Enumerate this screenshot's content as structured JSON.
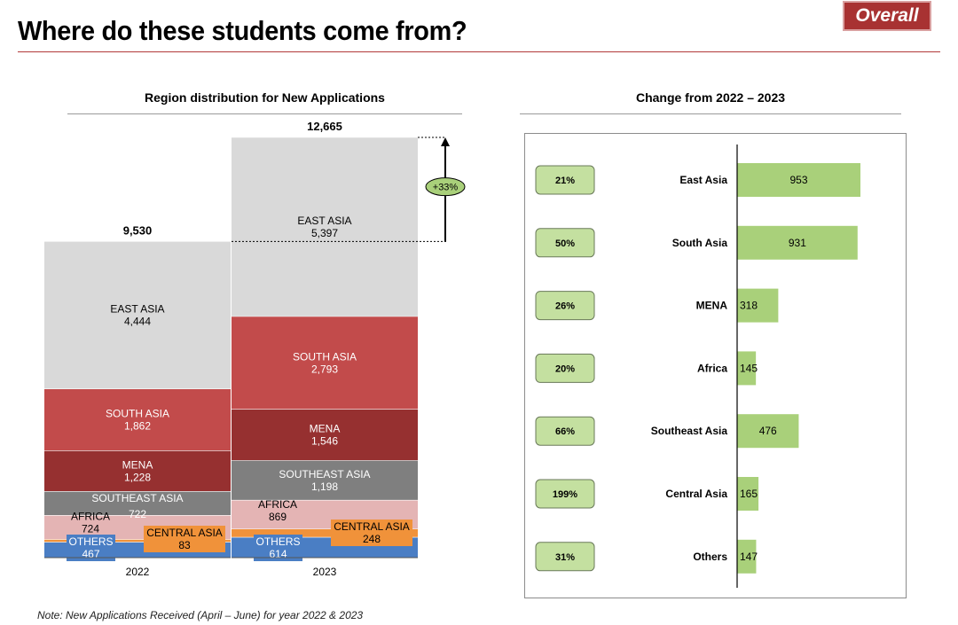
{
  "header": {
    "title": "Where do these students come from?",
    "badge": "Overall"
  },
  "note": "Note: New Applications Received (April – June) for year 2022 & 2023",
  "chart_data": [
    {
      "type": "bar",
      "stacked": true,
      "title": "Region distribution for New Applications",
      "categories": [
        "2022",
        "2023"
      ],
      "totals": [
        9530,
        12665
      ],
      "total_labels": [
        "9,530",
        "12,665"
      ],
      "growth_label": "+33%",
      "series": [
        {
          "name": "OTHERS",
          "values": [
            467,
            614
          ],
          "value_labels": [
            "467",
            "614"
          ],
          "color": "#4a7ec4"
        },
        {
          "name": "CENTRAL ASIA",
          "values": [
            83,
            248
          ],
          "value_labels": [
            "83",
            "248"
          ],
          "color": "#f0923a"
        },
        {
          "name": "AFRICA",
          "values": [
            724,
            869
          ],
          "value_labels": [
            "724",
            "869"
          ],
          "color": "#e4b4b4"
        },
        {
          "name": "SOUTHEAST ASIA",
          "values": [
            722,
            1198
          ],
          "value_labels": [
            "722",
            "1,198"
          ],
          "color": "#7f7f7f"
        },
        {
          "name": "MENA",
          "values": [
            1228,
            1546
          ],
          "value_labels": [
            "1,228",
            "1,546"
          ],
          "color": "#963030"
        },
        {
          "name": "SOUTH ASIA",
          "values": [
            1862,
            2793
          ],
          "value_labels": [
            "1,862",
            "2,793"
          ],
          "color": "#c24b4b"
        },
        {
          "name": "EAST ASIA",
          "values": [
            4444,
            5397
          ],
          "value_labels": [
            "4,444",
            "5,397"
          ],
          "color": "#d9d9d9"
        }
      ]
    },
    {
      "type": "bar",
      "orientation": "horizontal",
      "title": "Change from 2022 – 2023",
      "categories": [
        "East Asia",
        "South Asia",
        "MENA",
        "Africa",
        "Southeast Asia",
        "Central Asia",
        "Others"
      ],
      "values": [
        953,
        931,
        318,
        145,
        476,
        165,
        147
      ],
      "pct_change": [
        "21%",
        "50%",
        "26%",
        "20%",
        "66%",
        "199%",
        "31%"
      ],
      "bar_color": "#a9d07a",
      "pill_color": "#c4e0a0"
    }
  ]
}
